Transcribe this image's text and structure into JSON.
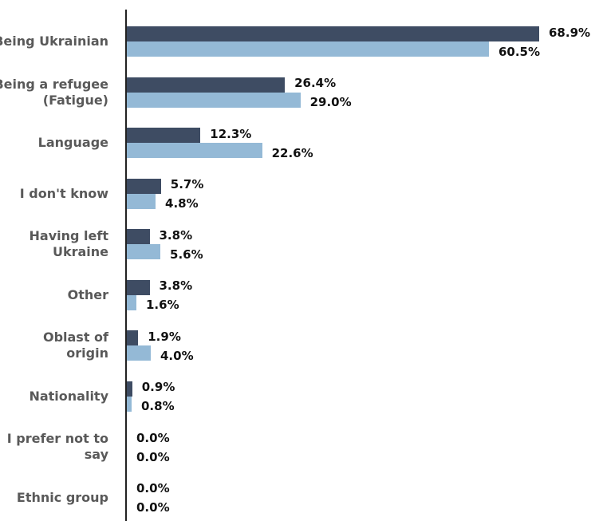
{
  "chart_data": {
    "type": "hbar",
    "categories": [
      "Being Ukrainian",
      "Being a refugee\n(Fatigue)",
      "Language",
      "I don't know",
      "Having left\nUkraine",
      "Other",
      "Oblast of\norigin",
      "Nationality",
      "I prefer not to\nsay",
      "Ethnic group"
    ],
    "series": [
      {
        "color": "#3e4c63",
        "values": [
          68.9,
          26.4,
          12.3,
          5.7,
          3.8,
          3.8,
          1.9,
          0.9,
          0.0,
          0.0
        ],
        "value_labels": [
          "68.9%",
          "26.4%",
          "12.3%",
          "5.7%",
          "3.8%",
          "3.8%",
          "1.9%",
          "0.9%",
          "0.0%",
          "0.0%"
        ]
      },
      {
        "color": "#94b9d6",
        "values": [
          60.5,
          29.0,
          22.6,
          4.8,
          5.6,
          1.6,
          4.0,
          0.8,
          0.0,
          0.0
        ],
        "value_labels": [
          "60.5%",
          "29.0%",
          "22.6%",
          "4.8%",
          "5.6%",
          "1.6%",
          "4.0%",
          "0.8%",
          "0.0%",
          "0.0%"
        ]
      }
    ],
    "xlim": [
      0,
      80
    ]
  }
}
